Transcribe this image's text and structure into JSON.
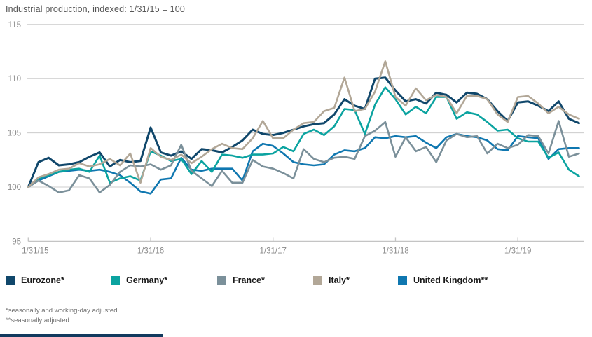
{
  "header": {
    "title": "Industrial production, indexed: 1/31/15 = 100"
  },
  "footnotes": {
    "line1": "*seasonally and working-day adjusted",
    "line2": "**seasonally adjusted"
  },
  "colors": {
    "background": "#ffffff",
    "gridline": "#cccccc",
    "axis": "#c4c4c4",
    "tick_label": "#8a8a8a",
    "title_text": "#555555",
    "legend_text": "#1a1a1a",
    "bottom_bar": "#123a5e"
  },
  "chart_data": {
    "type": "line",
    "title": "Industrial production, indexed: 1/31/15 = 100",
    "xlabel": "",
    "ylabel": "",
    "ylim": [
      95,
      115
    ],
    "yticks": [
      95,
      100,
      105,
      110,
      115
    ],
    "x_tick_labels": [
      "1/31/15",
      "1/31/16",
      "1/31/17",
      "1/31/18",
      "1/31/19"
    ],
    "x_frequency": "monthly",
    "x_start": "1/31/15",
    "x_end": "7/31/19",
    "grid": "horizontal",
    "legend_position": "bottom",
    "series": [
      {
        "name": "Eurozone*",
        "color": "#10476b",
        "values": [
          100.0,
          102.3,
          102.7,
          102.0,
          102.1,
          102.3,
          102.8,
          103.2,
          101.9,
          102.5,
          102.3,
          102.4,
          105.5,
          103.2,
          102.9,
          103.3,
          102.6,
          103.5,
          103.4,
          103.2,
          103.7,
          104.3,
          105.3,
          104.9,
          104.8,
          105.0,
          105.3,
          105.6,
          105.8,
          105.9,
          106.7,
          108.1,
          107.5,
          107.2,
          110.0,
          110.1,
          108.9,
          107.9,
          108.1,
          107.7,
          108.7,
          108.5,
          107.8,
          108.7,
          108.6,
          108.1,
          107.0,
          106.1,
          107.8,
          107.9,
          107.5,
          107.0,
          107.9,
          106.3,
          105.9
        ]
      },
      {
        "name": "United Kingdom**",
        "color": "#0f77b0",
        "values": [
          100.0,
          100.6,
          101.0,
          101.4,
          101.5,
          101.6,
          101.5,
          101.6,
          101.4,
          101.1,
          100.4,
          99.6,
          99.4,
          100.7,
          100.8,
          102.7,
          101.6,
          101.5,
          101.7,
          101.7,
          101.7,
          100.6,
          103.3,
          104.0,
          103.8,
          103.1,
          102.3,
          102.1,
          102.0,
          102.1,
          103.0,
          103.4,
          103.3,
          103.6,
          104.6,
          104.5,
          104.7,
          104.6,
          104.7,
          104.1,
          103.6,
          104.6,
          104.9,
          104.7,
          104.6,
          104.3,
          103.5,
          103.4,
          104.7,
          104.6,
          104.5,
          102.6,
          103.5,
          103.6,
          103.6
        ]
      },
      {
        "name": "Germany*",
        "color": "#0ba3a0",
        "values": [
          100.0,
          100.8,
          101.1,
          101.4,
          101.6,
          101.7,
          101.4,
          102.9,
          100.4,
          100.8,
          101.0,
          100.6,
          103.3,
          102.9,
          102.4,
          102.6,
          101.2,
          102.4,
          101.4,
          103.0,
          102.9,
          102.7,
          103.0,
          103.0,
          103.1,
          103.7,
          103.3,
          104.9,
          105.3,
          104.8,
          105.6,
          107.2,
          107.1,
          104.9,
          107.6,
          109.2,
          108.1,
          106.7,
          107.4,
          106.8,
          108.3,
          108.3,
          106.3,
          106.9,
          106.7,
          106.0,
          105.2,
          105.3,
          104.5,
          104.2,
          104.2,
          102.7,
          103.2,
          101.6,
          101.0
        ]
      },
      {
        "name": "France*",
        "color": "#7b909a",
        "values": [
          100.0,
          100.6,
          100.1,
          99.5,
          99.7,
          101.1,
          100.8,
          99.5,
          100.2,
          101.4,
          102.0,
          101.9,
          102.1,
          101.6,
          102.0,
          103.9,
          101.5,
          100.8,
          100.1,
          101.5,
          100.4,
          100.4,
          102.5,
          101.9,
          101.7,
          101.3,
          100.8,
          103.5,
          102.6,
          102.3,
          102.7,
          102.8,
          102.6,
          104.7,
          105.2,
          106.0,
          102.8,
          104.6,
          103.3,
          103.7,
          102.3,
          104.3,
          104.9,
          104.6,
          104.7,
          103.1,
          104.0,
          103.6,
          103.9,
          104.8,
          104.7,
          103.1,
          106.1,
          102.8,
          103.1
        ]
      },
      {
        "name": "Italy*",
        "color": "#b2a797",
        "values": [
          100.0,
          100.9,
          101.2,
          101.6,
          101.7,
          102.2,
          101.9,
          102.1,
          102.6,
          102.0,
          103.1,
          100.4,
          103.6,
          102.8,
          102.5,
          103.0,
          102.2,
          102.8,
          103.5,
          104.0,
          103.6,
          103.5,
          104.5,
          106.1,
          104.5,
          104.5,
          105.3,
          105.9,
          106.0,
          107.0,
          107.3,
          110.1,
          107.0,
          107.2,
          108.8,
          111.6,
          108.3,
          107.5,
          109.1,
          108.0,
          108.5,
          108.3,
          106.8,
          108.4,
          108.4,
          108.1,
          106.7,
          106.0,
          108.3,
          108.4,
          107.7,
          106.8,
          107.4,
          106.7,
          106.3
        ]
      }
    ]
  },
  "legend": {
    "order": [
      "Eurozone*",
      "Germany*",
      "France*",
      "Italy*",
      "United Kingdom**"
    ],
    "x_positions": [
      8,
      158,
      310,
      447,
      568
    ]
  }
}
